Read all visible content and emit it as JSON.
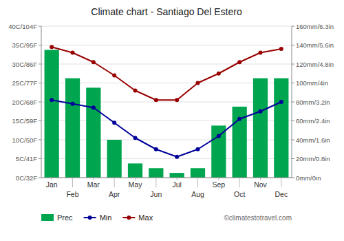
{
  "chart_data": {
    "type": "combo",
    "title": "Climate chart - Santiago Del Estero",
    "categories": [
      "Jan",
      "Feb",
      "Mar",
      "Apr",
      "May",
      "Jun",
      "Jul",
      "Aug",
      "Sep",
      "Oct",
      "Nov",
      "Dec"
    ],
    "series": [
      {
        "name": "Prec",
        "type": "bar",
        "axis": "y2",
        "color": "#00a550",
        "values": [
          135,
          105,
          95,
          40,
          15,
          10,
          5,
          10,
          55,
          75,
          105,
          105
        ]
      },
      {
        "name": "Min",
        "type": "line",
        "color": "#000099",
        "marker": "circle",
        "values": [
          20.5,
          19.5,
          18.5,
          14.5,
          10.5,
          7.5,
          5.5,
          7.5,
          11.0,
          15.5,
          17.5,
          20.0
        ]
      },
      {
        "name": "Max",
        "type": "line",
        "color": "#990000",
        "marker": "circle",
        "values": [
          34.5,
          33.0,
          30.5,
          27.0,
          23.0,
          20.5,
          20.5,
          25.0,
          27.5,
          30.5,
          33.0,
          34.0
        ]
      }
    ],
    "ylim": [
      0,
      40
    ],
    "yticks": [
      {
        "value": 0,
        "label": "0C/32F"
      },
      {
        "value": 5,
        "label": "5C/41F"
      },
      {
        "value": 10,
        "label": "10C/50F"
      },
      {
        "value": 15,
        "label": "15C/59F"
      },
      {
        "value": 20,
        "label": "20C/68F"
      },
      {
        "value": 25,
        "label": "25C/77F"
      },
      {
        "value": 30,
        "label": "30C/86F"
      },
      {
        "value": 35,
        "label": "35C/95F"
      },
      {
        "value": 40,
        "label": "40C/104F"
      }
    ],
    "y2lim": [
      0,
      160
    ],
    "y2ticks": [
      {
        "value": 0,
        "label": "0mm/0in"
      },
      {
        "value": 20,
        "label": "20mm/0.8in"
      },
      {
        "value": 40,
        "label": "40mm/1.6in"
      },
      {
        "value": 60,
        "label": "60mm/2.4in"
      },
      {
        "value": 80,
        "label": "80mm/3.2in"
      },
      {
        "value": 100,
        "label": "100mm/4in"
      },
      {
        "value": 120,
        "label": "120mm/4.8in"
      },
      {
        "value": 140,
        "label": "140mm/5.6in"
      },
      {
        "value": 160,
        "label": "160mm/6.3in"
      }
    ],
    "grid": true,
    "legend": "bottom",
    "annotations": [
      "©climatestotravel.com"
    ]
  }
}
